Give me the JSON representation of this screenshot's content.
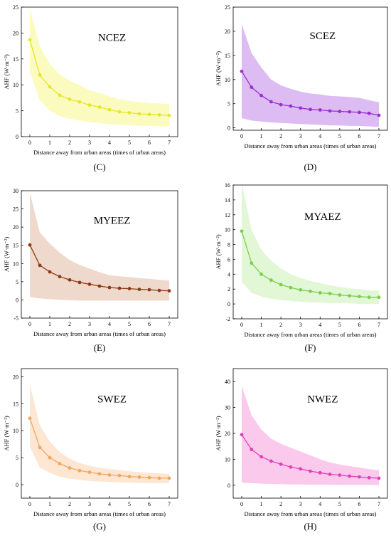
{
  "chart_data": [
    {
      "type": "line",
      "title": "NCEZ",
      "panel_label": "(C)",
      "xlabel": "Distance away from urban areas (times of urban areas)",
      "ylabel": "AHF (W·m⁻²)",
      "xlim": [
        0,
        7
      ],
      "ylim": [
        0,
        25
      ],
      "xticks": [
        "0",
        "1",
        "2",
        "3",
        "4",
        "5",
        "6",
        "7"
      ],
      "yticks": [
        "0",
        "5",
        "10",
        "15",
        "20",
        "25"
      ],
      "color": "#e6e62a",
      "band_color": "#fbfbbf",
      "x": [
        0,
        0.5,
        1,
        1.5,
        2,
        2.5,
        3,
        3.5,
        4,
        4.5,
        5,
        5.5,
        6,
        6.5,
        7
      ],
      "values": [
        18.7,
        11.9,
        9.6,
        8.0,
        7.2,
        6.7,
        6.1,
        5.7,
        5.2,
        4.8,
        4.6,
        4.4,
        4.3,
        4.2,
        4.1
      ],
      "upper": [
        24.5,
        17.5,
        14.0,
        12.0,
        10.8,
        9.9,
        9.0,
        8.4,
        7.8,
        7.2,
        6.9,
        6.7,
        6.5,
        6.4,
        6.3
      ],
      "lower": [
        12.5,
        7.0,
        5.0,
        4.0,
        3.4,
        3.1,
        2.8,
        2.6,
        2.4,
        2.3,
        2.2,
        2.1,
        2.1,
        2.0,
        2.0
      ]
    },
    {
      "type": "line",
      "title": "SCEZ",
      "panel_label": "(D)",
      "xlabel": "Distance away from urban areas (times of urban areas)",
      "ylabel": "AHF (W·m⁻²)",
      "xlim": [
        0,
        7
      ],
      "ylim": [
        -0.5,
        25
      ],
      "xticks": [
        "0",
        "1",
        "2",
        "3",
        "4",
        "5",
        "6",
        "7"
      ],
      "yticks": [
        "0",
        "5",
        "10",
        "15",
        "20",
        "25"
      ],
      "color": "#9b2fd0",
      "band_color": "#dcbcf3",
      "x": [
        0,
        0.5,
        1,
        1.5,
        2,
        2.5,
        3,
        3.5,
        4,
        4.5,
        5,
        5.5,
        6,
        6.5,
        7
      ],
      "values": [
        11.7,
        8.4,
        6.7,
        5.4,
        4.8,
        4.5,
        4.1,
        3.8,
        3.7,
        3.5,
        3.4,
        3.3,
        3.2,
        3.0,
        2.6
      ],
      "upper": [
        21.5,
        15.5,
        12.5,
        10.0,
        8.8,
        8.1,
        7.5,
        7.1,
        6.9,
        6.6,
        6.5,
        6.4,
        6.2,
        5.7,
        5.3
      ],
      "lower": [
        2.0,
        1.5,
        1.3,
        1.1,
        1.0,
        0.9,
        0.8,
        0.7,
        0.6,
        0.5,
        0.5,
        0.4,
        0.4,
        0.3,
        0.2
      ]
    },
    {
      "type": "line",
      "title": "MYEEZ",
      "panel_label": "(E)",
      "xlabel": "Distance away from urban areas (times of urban areas)",
      "ylabel": "AHF (W·m⁻²)",
      "xlim": [
        0,
        7
      ],
      "ylim": [
        -5,
        30
      ],
      "xticks": [
        "0",
        "1",
        "2",
        "3",
        "4",
        "5",
        "6",
        "7"
      ],
      "yticks": [
        "-5",
        "0",
        "5",
        "10",
        "15",
        "20",
        "25",
        "30"
      ],
      "color": "#8b3a12",
      "band_color": "#efd9cc",
      "x": [
        0,
        0.5,
        1,
        1.5,
        2,
        2.5,
        3,
        3.5,
        4,
        4.5,
        5,
        5.5,
        6,
        6.5,
        7
      ],
      "values": [
        15.1,
        9.5,
        7.7,
        6.4,
        5.5,
        4.8,
        4.3,
        3.8,
        3.4,
        3.2,
        3.1,
        2.9,
        2.8,
        2.6,
        2.5
      ],
      "upper": [
        29.5,
        18.5,
        15.5,
        13.0,
        11.0,
        9.6,
        8.6,
        7.6,
        6.8,
        6.5,
        6.3,
        6.0,
        5.8,
        5.5,
        5.3
      ],
      "lower": [
        0.8,
        0.4,
        0.2,
        0.0,
        -0.1,
        -0.2,
        -0.2,
        -0.2,
        -0.2,
        -0.2,
        -0.2,
        -0.2,
        -0.2,
        -0.2,
        -0.2
      ]
    },
    {
      "type": "line",
      "title": "MYAEZ",
      "panel_label": "(F)",
      "xlabel": "Distance away from urban areas (times of urban areas)",
      "ylabel": "AHF (W·m⁻²)",
      "xlim": [
        0,
        7
      ],
      "ylim": [
        -2,
        16
      ],
      "xticks": [
        "0",
        "1",
        "2",
        "3",
        "4",
        "5",
        "6",
        "7"
      ],
      "yticks": [
        "-2",
        "0",
        "2",
        "4",
        "6",
        "8",
        "10",
        "12",
        "14",
        "16"
      ],
      "color": "#7bcf4a",
      "band_color": "#e2f7d6",
      "x": [
        0,
        0.5,
        1,
        1.5,
        2,
        2.5,
        3,
        3.5,
        4,
        4.5,
        5,
        5.5,
        6,
        6.5,
        7
      ],
      "values": [
        9.8,
        5.5,
        4.0,
        3.2,
        2.6,
        2.2,
        1.9,
        1.7,
        1.5,
        1.4,
        1.2,
        1.1,
        1.0,
        0.9,
        0.9
      ],
      "upper": [
        16.3,
        10.0,
        7.3,
        5.8,
        4.8,
        4.0,
        3.5,
        3.1,
        2.8,
        2.5,
        2.3,
        2.1,
        2.0,
        1.8,
        1.8
      ],
      "lower": [
        3.0,
        1.5,
        1.0,
        0.7,
        0.5,
        0.4,
        0.3,
        0.2,
        0.2,
        0.1,
        0.1,
        0.1,
        0.0,
        0.0,
        0.0
      ]
    },
    {
      "type": "line",
      "title": "SWEZ",
      "panel_label": "(G)",
      "xlabel": "Distance away from urban areas (times of urban areas)",
      "ylabel": "AHF (W·m⁻²)",
      "xlim": [
        0,
        7
      ],
      "ylim": [
        -2.5,
        21.5
      ],
      "xticks": [
        "0",
        "1",
        "2",
        "3",
        "4",
        "5",
        "6",
        "7"
      ],
      "yticks": [
        "0",
        "5",
        "10",
        "15",
        "20"
      ],
      "color": "#f0a860",
      "band_color": "#fde6d2",
      "x": [
        0,
        0.5,
        1,
        1.5,
        2,
        2.5,
        3,
        3.5,
        4,
        4.5,
        5,
        5.5,
        6,
        6.5,
        7
      ],
      "values": [
        12.3,
        6.9,
        5.0,
        3.9,
        3.1,
        2.6,
        2.3,
        2.0,
        1.8,
        1.7,
        1.5,
        1.4,
        1.3,
        1.2,
        1.2
      ],
      "upper": [
        18.5,
        11.0,
        8.0,
        6.0,
        4.8,
        4.0,
        3.5,
        3.1,
        2.9,
        2.7,
        2.5,
        2.3,
        2.2,
        2.1,
        2.0
      ],
      "lower": [
        7.0,
        3.2,
        2.2,
        1.5,
        1.1,
        0.9,
        0.7,
        0.6,
        0.5,
        0.4,
        0.4,
        0.3,
        0.3,
        0.3,
        0.3
      ]
    },
    {
      "type": "line",
      "title": "NWEZ",
      "panel_label": "(H)",
      "xlabel": "Distance away from urban areas (times of urban areas)",
      "ylabel": "AHF (W·m⁻²)",
      "xlim": [
        0,
        7
      ],
      "ylim": [
        -5,
        45
      ],
      "xticks": [
        "0",
        "1",
        "2",
        "3",
        "4",
        "5",
        "6",
        "7"
      ],
      "yticks": [
        "0",
        "10",
        "20",
        "30",
        "40"
      ],
      "color": "#e040b8",
      "band_color": "#fbc9ec",
      "x": [
        0,
        0.5,
        1,
        1.5,
        2,
        2.5,
        3,
        3.5,
        4,
        4.5,
        5,
        5.5,
        6,
        6.5,
        7
      ],
      "values": [
        19.5,
        13.8,
        11.0,
        9.3,
        8.1,
        7.0,
        6.3,
        5.4,
        4.8,
        4.2,
        3.9,
        3.5,
        3.2,
        2.9,
        2.7
      ],
      "upper": [
        38.5,
        27.0,
        21.5,
        18.0,
        16.0,
        14.5,
        13.0,
        11.5,
        10.0,
        8.8,
        8.0,
        7.4,
        6.8,
        6.2,
        5.8
      ],
      "lower": [
        1.0,
        0.8,
        0.6,
        0.5,
        0.4,
        0.3,
        0.3,
        0.2,
        0.2,
        0.2,
        0.1,
        0.1,
        0.1,
        0.1,
        0.0
      ]
    }
  ]
}
